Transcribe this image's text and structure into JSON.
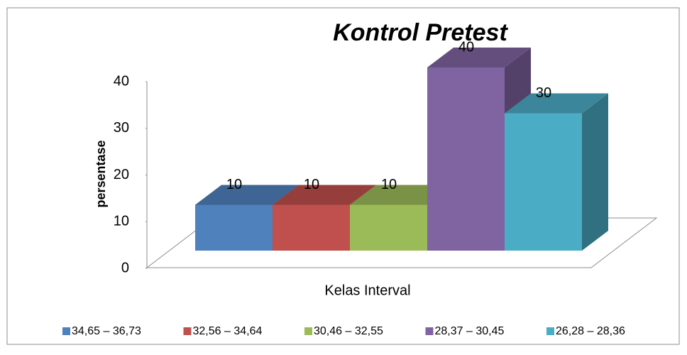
{
  "chart_data": {
    "type": "bar3d",
    "title": "Kontrol Pretest",
    "y_label": "persentase",
    "x_label": "Kelas Interval",
    "ylim": [
      0,
      40
    ],
    "yticks": [
      0,
      10,
      20,
      30,
      40
    ],
    "series": [
      {
        "name": "34,65 – 36,73",
        "color": "#4f81bd",
        "values": [
          10
        ]
      },
      {
        "name": "32,56 – 34,64",
        "color": "#c0504d",
        "values": [
          10
        ]
      },
      {
        "name": "30,46 – 32,55",
        "color": "#9bbb59",
        "values": [
          10
        ]
      },
      {
        "name": "28,37 – 30,45",
        "color": "#8064a2",
        "values": [
          40
        ]
      },
      {
        "name": "26,28 – 28,36",
        "color": "#4bacc6",
        "values": [
          30
        ]
      }
    ],
    "legend": "bottom"
  }
}
